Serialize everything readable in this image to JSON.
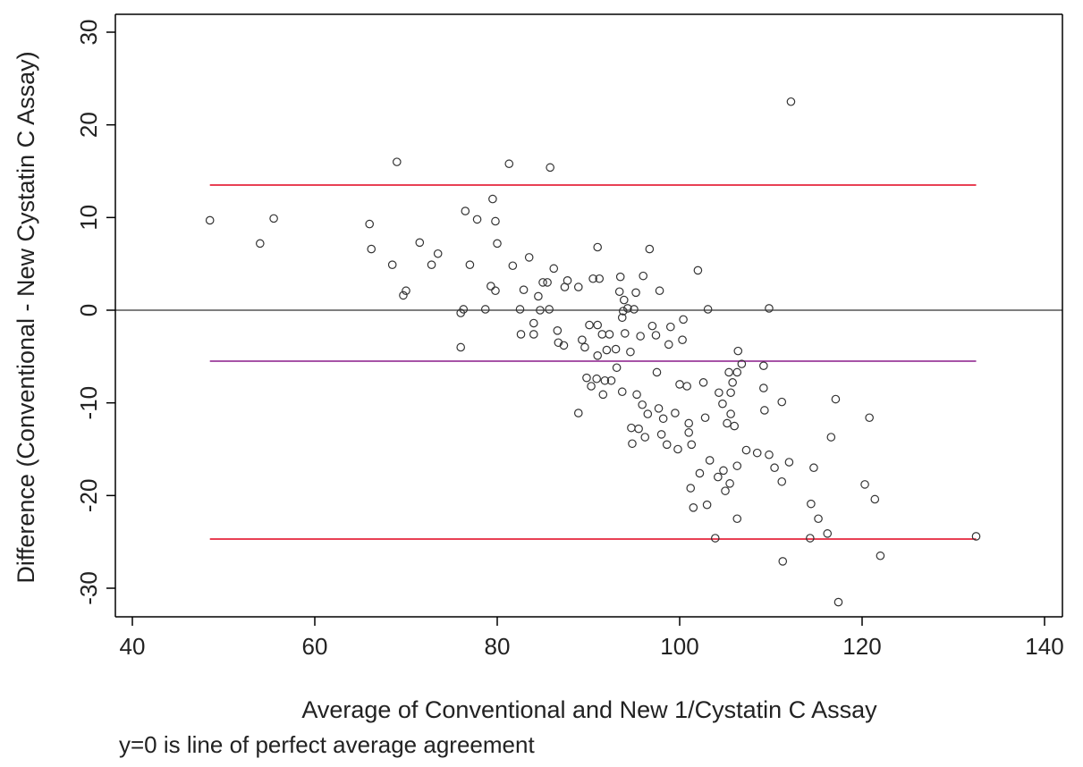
{
  "chart_data": {
    "type": "scatter",
    "xlabel": "Average of Conventional and New 1/Cystatin C Assay",
    "ylabel": "Difference (Conventional - New Cystatin C Assay)",
    "note": "y=0 is line of perfect average agreement",
    "xlim": [
      40,
      140
    ],
    "ylim": [
      -33,
      31.5
    ],
    "x_ticks": [
      40,
      60,
      80,
      100,
      120,
      140
    ],
    "y_ticks": [
      -30,
      -20,
      -10,
      0,
      10,
      20,
      30
    ],
    "grid": false,
    "legend": "none",
    "colors": {
      "points": "#333333",
      "zero_line": "#555555",
      "limit_lines": "#e0001b",
      "mean_line": "#8a1a8a",
      "axes": "#000000"
    },
    "reference_lines": [
      {
        "role": "zero",
        "y": 0,
        "x_range": [
          40,
          140
        ]
      },
      {
        "role": "upper_limit",
        "y": 13.5,
        "x_range": [
          48.5,
          132.5
        ]
      },
      {
        "role": "mean_difference",
        "y": -5.5,
        "x_range": [
          48.5,
          132.5
        ]
      },
      {
        "role": "lower_limit",
        "y": -24.7,
        "x_range": [
          48.5,
          132.5
        ]
      }
    ],
    "points": [
      [
        48.5,
        9.7
      ],
      [
        54,
        7.2
      ],
      [
        55.5,
        9.9
      ],
      [
        66,
        9.3
      ],
      [
        66.2,
        6.6
      ],
      [
        68.5,
        4.9
      ],
      [
        69,
        16
      ],
      [
        69.7,
        1.6
      ],
      [
        70,
        2.1
      ],
      [
        71.5,
        7.3
      ],
      [
        72.8,
        4.9
      ],
      [
        73.5,
        6.1
      ],
      [
        76,
        -0.3
      ],
      [
        76,
        -4
      ],
      [
        76.3,
        0.1
      ],
      [
        76.5,
        10.7
      ],
      [
        77,
        4.9
      ],
      [
        77.8,
        9.8
      ],
      [
        78.7,
        0.1
      ],
      [
        79.3,
        2.6
      ],
      [
        79.5,
        12
      ],
      [
        79.8,
        2.1
      ],
      [
        79.8,
        9.6
      ],
      [
        80,
        7.2
      ],
      [
        81.3,
        15.8
      ],
      [
        81.7,
        4.8
      ],
      [
        82.5,
        0.1
      ],
      [
        82.6,
        -2.6
      ],
      [
        82.9,
        2.2
      ],
      [
        83.5,
        5.7
      ],
      [
        84,
        -1.4
      ],
      [
        84,
        -2.6
      ],
      [
        84.5,
        1.5
      ],
      [
        84.7,
        0
      ],
      [
        85,
        3
      ],
      [
        85.5,
        3
      ],
      [
        85.7,
        0.1
      ],
      [
        85.8,
        15.4
      ],
      [
        86.2,
        4.5
      ],
      [
        86.6,
        -2.2
      ],
      [
        86.7,
        -3.5
      ],
      [
        87.3,
        -3.8
      ],
      [
        87.4,
        2.5
      ],
      [
        87.7,
        3.2
      ],
      [
        88.9,
        2.5
      ],
      [
        88.9,
        -11.1
      ],
      [
        89.3,
        -3.2
      ],
      [
        89.6,
        -4
      ],
      [
        89.8,
        -7.3
      ],
      [
        90.1,
        -1.6
      ],
      [
        90.3,
        -8.2
      ],
      [
        90.5,
        3.4
      ],
      [
        90.9,
        -7.4
      ],
      [
        91,
        -1.6
      ],
      [
        91,
        -4.9
      ],
      [
        91,
        6.8
      ],
      [
        91.2,
        3.4
      ],
      [
        91.5,
        -2.6
      ],
      [
        91.6,
        -9.1
      ],
      [
        91.8,
        -7.6
      ],
      [
        92,
        -4.3
      ],
      [
        92.3,
        -2.6
      ],
      [
        92.5,
        -7.6
      ],
      [
        93,
        -4.2
      ],
      [
        93.1,
        -6.2
      ],
      [
        93.4,
        2
      ],
      [
        93.5,
        3.6
      ],
      [
        93.7,
        -8.8
      ],
      [
        93.7,
        -0.8
      ],
      [
        93.8,
        -0.1
      ],
      [
        93.9,
        1.1
      ],
      [
        94,
        -2.5
      ],
      [
        94.3,
        0.2
      ],
      [
        94.6,
        -4.5
      ],
      [
        94.7,
        -12.7
      ],
      [
        94.8,
        -14.4
      ],
      [
        95,
        0.1
      ],
      [
        95.2,
        1.9
      ],
      [
        95.3,
        -9.1
      ],
      [
        95.5,
        -12.8
      ],
      [
        95.7,
        -2.8
      ],
      [
        95.9,
        -10.2
      ],
      [
        96,
        3.7
      ],
      [
        96.2,
        -13.7
      ],
      [
        96.5,
        -11.2
      ],
      [
        96.7,
        6.6
      ],
      [
        97,
        -1.7
      ],
      [
        97.4,
        -2.7
      ],
      [
        97.5,
        -6.7
      ],
      [
        97.7,
        -10.6
      ],
      [
        97.8,
        2.1
      ],
      [
        98,
        -13.4
      ],
      [
        98.2,
        -11.7
      ],
      [
        98.6,
        -14.5
      ],
      [
        98.8,
        -3.7
      ],
      [
        99,
        -1.8
      ],
      [
        99.5,
        -11.1
      ],
      [
        99.8,
        -15
      ],
      [
        100,
        -8
      ],
      [
        100.3,
        -3.2
      ],
      [
        100.4,
        -1
      ],
      [
        100.8,
        -8.2
      ],
      [
        101,
        -13.2
      ],
      [
        101,
        -12.2
      ],
      [
        101.2,
        -19.2
      ],
      [
        101.3,
        -14.5
      ],
      [
        101.5,
        -21.3
      ],
      [
        102,
        4.3
      ],
      [
        102.2,
        -17.6
      ],
      [
        102.6,
        -7.8
      ],
      [
        102.8,
        -11.6
      ],
      [
        103,
        -21
      ],
      [
        103.1,
        0.1
      ],
      [
        103.3,
        -16.2
      ],
      [
        103.9,
        -24.6
      ],
      [
        104.2,
        -18
      ],
      [
        104.3,
        -8.9
      ],
      [
        104.7,
        -10.1
      ],
      [
        104.8,
        -17.3
      ],
      [
        105,
        -19.5
      ],
      [
        105.2,
        -12.2
      ],
      [
        105.4,
        -6.7
      ],
      [
        105.5,
        -18.7
      ],
      [
        105.6,
        -11.2
      ],
      [
        105.6,
        -8.9
      ],
      [
        105.8,
        -7.8
      ],
      [
        106,
        -12.5
      ],
      [
        106.3,
        -6.7
      ],
      [
        106.3,
        -16.8
      ],
      [
        106.3,
        -22.5
      ],
      [
        106.4,
        -4.4
      ],
      [
        106.8,
        -5.8
      ],
      [
        107.3,
        -15.1
      ],
      [
        108.5,
        -15.4
      ],
      [
        109.2,
        -6
      ],
      [
        109.2,
        -8.4
      ],
      [
        109.3,
        -10.8
      ],
      [
        109.8,
        0.2
      ],
      [
        109.8,
        -15.6
      ],
      [
        110.4,
        -17
      ],
      [
        111.2,
        -18.5
      ],
      [
        111.2,
        -9.9
      ],
      [
        111.3,
        -27.1
      ],
      [
        112,
        -16.4
      ],
      [
        112.2,
        22.5
      ],
      [
        114.3,
        -24.6
      ],
      [
        114.4,
        -20.9
      ],
      [
        114.7,
        -17
      ],
      [
        115.2,
        -22.5
      ],
      [
        116.2,
        -24.1
      ],
      [
        116.6,
        -13.7
      ],
      [
        117.1,
        -9.6
      ],
      [
        117.4,
        -31.5
      ],
      [
        120.3,
        -18.8
      ],
      [
        120.8,
        -11.6
      ],
      [
        121.4,
        -20.4
      ],
      [
        122,
        -26.5
      ],
      [
        132.5,
        -24.4
      ]
    ]
  }
}
